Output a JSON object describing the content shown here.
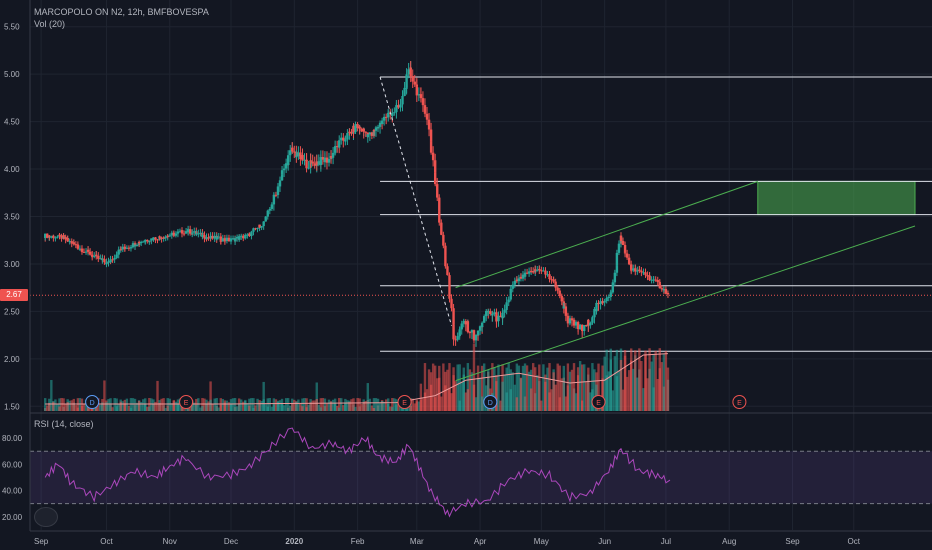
{
  "chart_data": [
    {
      "type": "candlestick",
      "title": "MARCOPOLO ON N2, 12h, BMFBOVESPA",
      "indicator_label": "Vol (20)",
      "last_price_label": "2.67",
      "last_price": 2.67,
      "ylim": [
        1.45,
        5.55
      ],
      "y_ticks": [
        "5.50",
        "5.00",
        "4.50",
        "4.00",
        "3.50",
        "3.00",
        "2.50",
        "2.00",
        "1.50"
      ],
      "x_ticks": [
        "Sep",
        "Oct",
        "Nov",
        "Dec",
        "2020",
        "Feb",
        "Mar",
        "Apr",
        "May",
        "Jun",
        "Jul",
        "Aug",
        "Sep",
        "Oct"
      ],
      "close_path": [
        [
          "2019-09-01",
          3.3
        ],
        [
          "2019-09-10",
          3.28
        ],
        [
          "2019-09-20",
          3.15
        ],
        [
          "2019-09-28",
          3.05
        ],
        [
          "2019-10-02",
          3.0
        ],
        [
          "2019-10-08",
          3.15
        ],
        [
          "2019-10-20",
          3.25
        ],
        [
          "2019-11-01",
          3.3
        ],
        [
          "2019-11-10",
          3.35
        ],
        [
          "2019-11-20",
          3.28
        ],
        [
          "2019-12-01",
          3.25
        ],
        [
          "2019-12-10",
          3.3
        ],
        [
          "2019-12-18",
          3.45
        ],
        [
          "2019-12-24",
          3.8
        ],
        [
          "2019-12-31",
          4.2
        ],
        [
          "2020-01-08",
          4.05
        ],
        [
          "2020-01-18",
          4.1
        ],
        [
          "2020-01-25",
          4.3
        ],
        [
          "2020-02-01",
          4.45
        ],
        [
          "2020-02-08",
          4.35
        ],
        [
          "2020-02-15",
          4.55
        ],
        [
          "2020-02-22",
          4.65
        ],
        [
          "2020-02-27",
          5.05
        ],
        [
          "2020-03-02",
          4.8
        ],
        [
          "2020-03-06",
          4.6
        ],
        [
          "2020-03-10",
          4.0
        ],
        [
          "2020-03-13",
          3.4
        ],
        [
          "2020-03-17",
          2.8
        ],
        [
          "2020-03-20",
          2.2
        ],
        [
          "2020-03-25",
          2.4
        ],
        [
          "2020-03-30",
          2.2
        ],
        [
          "2020-04-05",
          2.5
        ],
        [
          "2020-04-12",
          2.4
        ],
        [
          "2020-04-18",
          2.8
        ],
        [
          "2020-04-25",
          2.9
        ],
        [
          "2020-05-01",
          2.95
        ],
        [
          "2020-05-08",
          2.8
        ],
        [
          "2020-05-15",
          2.4
        ],
        [
          "2020-05-22",
          2.3
        ],
        [
          "2020-05-29",
          2.55
        ],
        [
          "2020-06-05",
          2.7
        ],
        [
          "2020-06-09",
          3.3
        ],
        [
          "2020-06-14",
          2.95
        ],
        [
          "2020-06-21",
          2.9
        ],
        [
          "2020-06-27",
          2.8
        ],
        [
          "2020-07-01",
          2.72
        ],
        [
          "2020-07-03",
          2.67
        ]
      ],
      "horizontal_levels": [
        4.97,
        3.87,
        3.52,
        2.77,
        2.08
      ],
      "channel_upper": [
        [
          "2020-03-20",
          2.75
        ],
        [
          "2020-08-15",
          3.87
        ]
      ],
      "channel_lower": [
        [
          "2020-03-20",
          1.77
        ],
        [
          "2020-10-31",
          3.4
        ]
      ],
      "breakdown_line": [
        [
          "2020-02-12",
          4.97
        ],
        [
          "2020-03-18",
          2.35
        ]
      ],
      "target_zone": {
        "start": "2020-08-15",
        "end": "2020-10-31",
        "top": 3.87,
        "bottom": 3.52
      },
      "event_markers": [
        {
          "label": "D",
          "date": "2019-09-24"
        },
        {
          "label": "E",
          "date": "2019-11-09"
        },
        {
          "label": "E",
          "date": "2020-02-24"
        },
        {
          "label": "D",
          "date": "2020-04-06"
        },
        {
          "label": "E",
          "date": "2020-05-29"
        },
        {
          "label": "E",
          "date": "2020-08-06"
        }
      ],
      "volume_ma_path": [
        [
          "2019-09-01",
          0.25
        ],
        [
          "2019-12-01",
          0.25
        ],
        [
          "2020-02-20",
          0.3
        ],
        [
          "2020-03-10",
          0.55
        ],
        [
          "2020-03-25",
          1.1
        ],
        [
          "2020-04-20",
          1.35
        ],
        [
          "2020-05-15",
          1.0
        ],
        [
          "2020-06-01",
          1.1
        ],
        [
          "2020-06-20",
          2.0
        ],
        [
          "2020-07-02",
          2.05
        ]
      ]
    },
    {
      "type": "line",
      "title": "RSI (14, close)",
      "ylim": [
        16,
        90
      ],
      "y_ticks": [
        "80.00",
        "60.00",
        "40.00",
        "20.00"
      ],
      "bands": [
        30,
        70
      ],
      "series": [
        {
          "points": [
            [
              "2019-09-01",
              50
            ],
            [
              "2019-09-08",
              60
            ],
            [
              "2019-09-15",
              45
            ],
            [
              "2019-09-25",
              35
            ],
            [
              "2019-10-05",
              45
            ],
            [
              "2019-10-15",
              55
            ],
            [
              "2019-10-25",
              50
            ],
            [
              "2019-11-01",
              58
            ],
            [
              "2019-11-09",
              65
            ],
            [
              "2019-11-20",
              50
            ],
            [
              "2019-12-01",
              52
            ],
            [
              "2019-12-10",
              58
            ],
            [
              "2019-12-20",
              72
            ],
            [
              "2019-12-31",
              88
            ],
            [
              "2020-01-10",
              72
            ],
            [
              "2020-01-20",
              76
            ],
            [
              "2020-01-28",
              70
            ],
            [
              "2020-02-05",
              80
            ],
            [
              "2020-02-12",
              65
            ],
            [
              "2020-02-20",
              62
            ],
            [
              "2020-02-26",
              75
            ],
            [
              "2020-03-03",
              55
            ],
            [
              "2020-03-10",
              35
            ],
            [
              "2020-03-16",
              22
            ],
            [
              "2020-03-25",
              30
            ],
            [
              "2020-04-05",
              32
            ],
            [
              "2020-04-15",
              48
            ],
            [
              "2020-04-25",
              55
            ],
            [
              "2020-05-05",
              52
            ],
            [
              "2020-05-15",
              35
            ],
            [
              "2020-05-25",
              38
            ],
            [
              "2020-06-03",
              55
            ],
            [
              "2020-06-09",
              72
            ],
            [
              "2020-06-18",
              55
            ],
            [
              "2020-06-26",
              52
            ],
            [
              "2020-07-03",
              48
            ]
          ]
        }
      ]
    }
  ]
}
